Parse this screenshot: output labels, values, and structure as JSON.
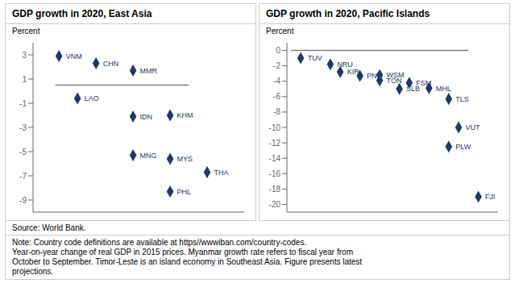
{
  "chart_data": [
    {
      "type": "scatter",
      "title": "GDP growth in 2020, East Asia",
      "ylabel": "Percent",
      "marker": "diamond",
      "color": "#1f3864",
      "labels": [
        "VNM",
        "CHN",
        "MMR",
        "LAO",
        "IDN",
        "KHM",
        "MNG",
        "MYS",
        "THA",
        "PHL"
      ],
      "x": [
        1.0,
        2.0,
        3.0,
        1.5,
        3.0,
        4.0,
        3.0,
        4.0,
        5.0,
        4.0
      ],
      "values": [
        2.9,
        2.3,
        1.7,
        -0.6,
        -2.1,
        -2.0,
        -5.3,
        -5.6,
        -6.7,
        -8.3
      ],
      "xlim": [
        0.3,
        6.0
      ],
      "ylim": [
        -10,
        4
      ],
      "yticks": [
        3,
        1,
        -1,
        -3,
        -5,
        -7,
        -9
      ],
      "tick_labels": "y",
      "grid": false,
      "reference_line": {
        "y": 0.5,
        "x1": 0.9,
        "x2": 4.5,
        "color": "gray"
      }
    },
    {
      "type": "scatter",
      "title": "GDP growth in 2020, Pacific Islands",
      "ylabel": "Percent",
      "marker": "diamond",
      "color": "#1f3864",
      "labels": [
        "TUV",
        "NRU",
        "KIR",
        "WSM",
        "PNG",
        "TON",
        "FSM",
        "SLB",
        "MHL",
        "TLS",
        "VUT",
        "PLW",
        "FJI"
      ],
      "x": [
        1.0,
        2.5,
        3.0,
        5.0,
        4.0,
        5.0,
        6.5,
        6.0,
        7.5,
        8.5,
        9.0,
        8.5,
        10.0
      ],
      "values": [
        -1.0,
        -1.8,
        -2.8,
        -3.2,
        -3.3,
        -3.9,
        -4.2,
        -5.0,
        -4.9,
        -6.3,
        -10.0,
        -12.5,
        -19.0
      ],
      "xlim": [
        0.3,
        11.0
      ],
      "ylim": [
        -21,
        1
      ],
      "yticks": [
        0,
        -2,
        -4,
        -6,
        -8,
        -10,
        -12,
        -14,
        -16,
        -18,
        -20
      ],
      "tick_labels": "y",
      "grid": false,
      "reference_line": {
        "y": 0.0,
        "x1": 0.5,
        "x2": 9.5,
        "color": "gray"
      }
    }
  ],
  "source": "Source: World Bank.",
  "note": "Note: Country code definitions are available at https//wwwiban.com/country-codes.\nYear-on-year change of real GDP in 2015 prices. Myanmar growth rate refers to fiscal year from\nOctober to September. Timor-Leste is an island economy in Southeast Asia. Figure presents latest\nprojections."
}
